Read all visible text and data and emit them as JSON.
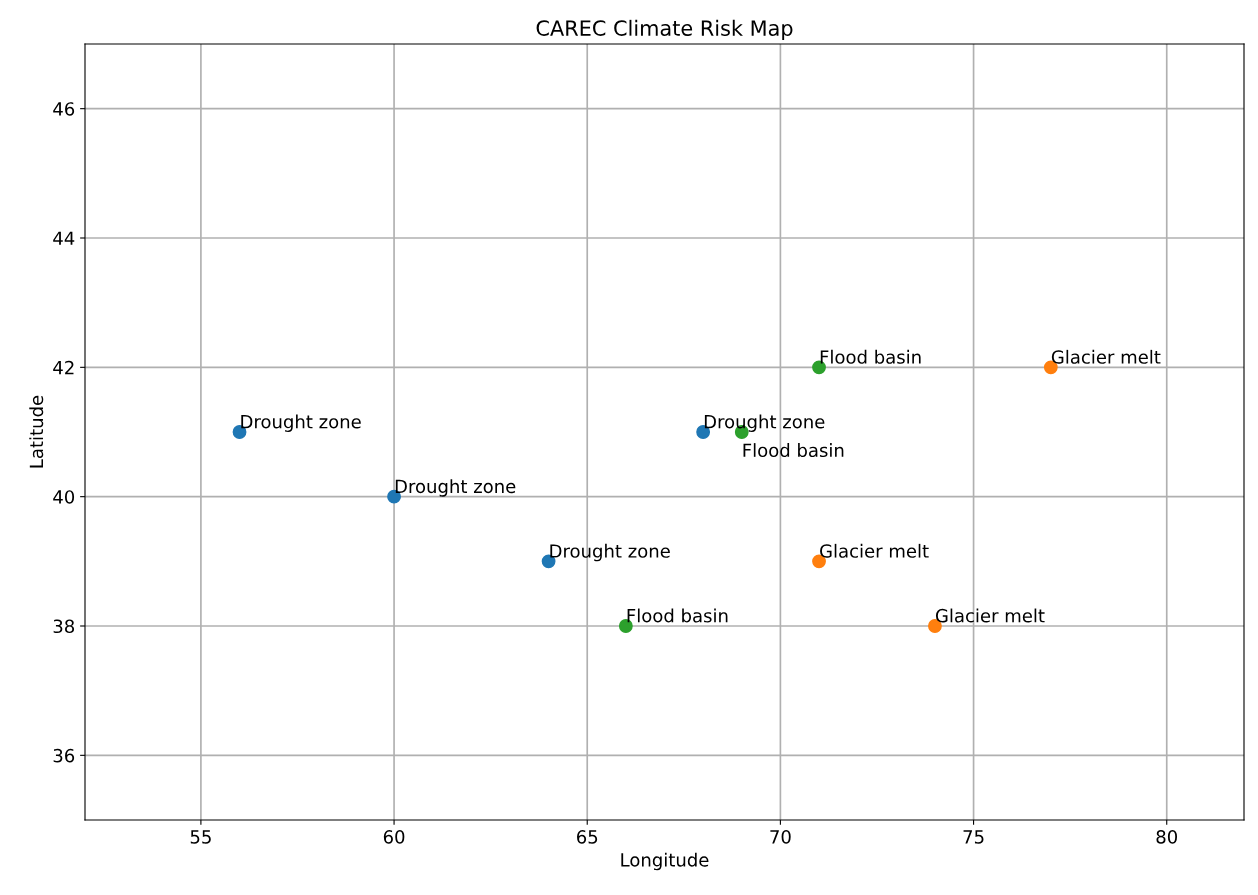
{
  "chart_data": {
    "type": "scatter",
    "title": "CAREC Climate Risk Map",
    "xlabel": "Longitude",
    "ylabel": "Latitude",
    "series": [
      {
        "color": "#1f77b4",
        "x": [
          56,
          60,
          64,
          68
        ],
        "values": [
          41,
          40,
          39,
          41
        ]
      },
      {
        "color": "#2ca02c",
        "x": [
          71,
          69,
          66
        ],
        "values": [
          42,
          41,
          38
        ]
      },
      {
        "color": "#ff7f0e",
        "x": [
          77,
          71,
          74
        ],
        "values": [
          42,
          39,
          38
        ]
      }
    ],
    "annotations": [
      {
        "text": "Drought zone",
        "x": 56,
        "y": 41
      },
      {
        "text": "Drought zone",
        "x": 60,
        "y": 40
      },
      {
        "text": "Drought zone",
        "x": 64,
        "y": 39
      },
      {
        "text": "Drought zone",
        "x": 68,
        "y": 41
      },
      {
        "text": "Flood basin",
        "x": 71,
        "y": 42
      },
      {
        "text": "Flood basin",
        "x": 69,
        "y": 41
      },
      {
        "text": "Flood basin",
        "x": 66,
        "y": 38
      },
      {
        "text": "Glacier melt",
        "x": 77,
        "y": 42
      },
      {
        "text": "Glacier melt",
        "x": 71,
        "y": 39
      },
      {
        "text": "Glacier melt",
        "x": 74,
        "y": 38
      }
    ],
    "xlim": [
      52,
      82
    ],
    "ylim": [
      35,
      47
    ],
    "xticks": [
      55,
      60,
      65,
      70,
      75,
      80
    ],
    "yticks": [
      36,
      38,
      40,
      42,
      44,
      46
    ],
    "grid": true,
    "marker": "circle"
  }
}
